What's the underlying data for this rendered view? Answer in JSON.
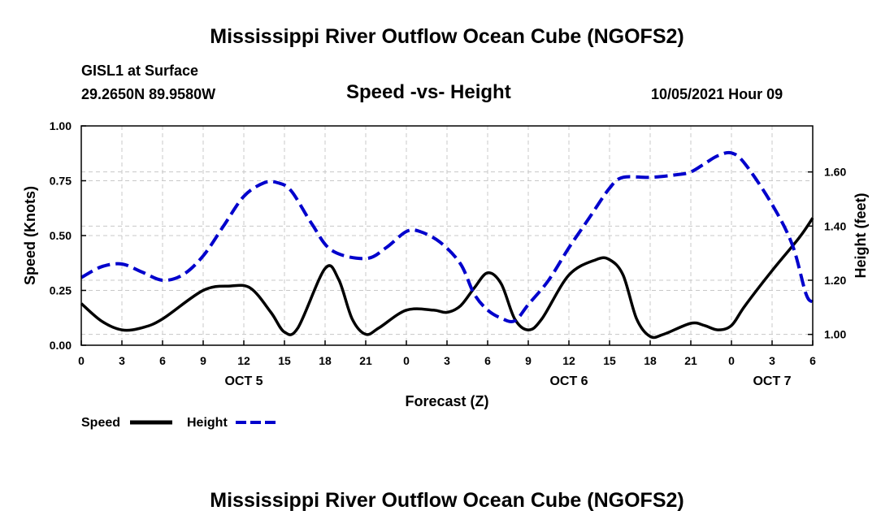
{
  "page": {
    "title_top": "Mississippi River Outflow Ocean Cube (NGOFS2)",
    "title_bottom": "Mississippi River Outflow Ocean Cube (NGOFS2)",
    "station_line": "GISL1 at Surface",
    "coords_line": "29.2650N  89.9580W",
    "chart_title": "Speed -vs- Height",
    "date_line": "10/05/2021 Hour 09"
  },
  "chart_data": {
    "type": "line",
    "title": "Speed -vs- Height",
    "xlabel": "Forecast (Z)",
    "ylabel": "Speed (Knots)",
    "y2label": "Height (feet)",
    "x": [
      0,
      3,
      6,
      9,
      12,
      15,
      18,
      21,
      24,
      27,
      30,
      33,
      36,
      39,
      42,
      45,
      48,
      51,
      54
    ],
    "xlim": [
      0,
      54
    ],
    "x_tick_labels": [
      "0",
      "3",
      "6",
      "9",
      "12",
      "15",
      "18",
      "21",
      "0",
      "3",
      "6",
      "9",
      "12",
      "15",
      "18",
      "21",
      "0",
      "3",
      "6"
    ],
    "day_labels": [
      {
        "label": "OCT 5",
        "x": 12
      },
      {
        "label": "OCT 6",
        "x": 36
      },
      {
        "label": "OCT 7",
        "x": 51
      }
    ],
    "ylim": [
      0,
      1
    ],
    "y_ticks": [
      "0.00",
      "0.25",
      "0.50",
      "0.75",
      "1.00"
    ],
    "y2lim": [
      0.96,
      1.77
    ],
    "y2_ticks": [
      "1.00",
      "1.20",
      "1.40",
      "1.60"
    ],
    "grid": true,
    "legend_position": "bottom-left",
    "series": [
      {
        "name": "Speed",
        "axis": "left",
        "color": "#000000",
        "dash": "solid",
        "points": [
          [
            0,
            0.19
          ],
          [
            1.5,
            0.11
          ],
          [
            3,
            0.07
          ],
          [
            4.5,
            0.08
          ],
          [
            6,
            0.12
          ],
          [
            9,
            0.25
          ],
          [
            11,
            0.27
          ],
          [
            12.5,
            0.26
          ],
          [
            14,
            0.15
          ],
          [
            15,
            0.06
          ],
          [
            16,
            0.08
          ],
          [
            18,
            0.35
          ],
          [
            19,
            0.3
          ],
          [
            20,
            0.12
          ],
          [
            21,
            0.05
          ],
          [
            22,
            0.08
          ],
          [
            24,
            0.16
          ],
          [
            26,
            0.16
          ],
          [
            27,
            0.15
          ],
          [
            28,
            0.18
          ],
          [
            29,
            0.26
          ],
          [
            30,
            0.33
          ],
          [
            31,
            0.28
          ],
          [
            32,
            0.12
          ],
          [
            33,
            0.07
          ],
          [
            34,
            0.12
          ],
          [
            36,
            0.32
          ],
          [
            38,
            0.39
          ],
          [
            39,
            0.39
          ],
          [
            40,
            0.32
          ],
          [
            41,
            0.12
          ],
          [
            42,
            0.04
          ],
          [
            43,
            0.05
          ],
          [
            45,
            0.1
          ],
          [
            46,
            0.09
          ],
          [
            47,
            0.07
          ],
          [
            48,
            0.09
          ],
          [
            49,
            0.18
          ],
          [
            51,
            0.34
          ],
          [
            53,
            0.49
          ],
          [
            54,
            0.58
          ]
        ]
      },
      {
        "name": "Height",
        "axis": "right",
        "color": "#0000cc",
        "dash": "dashed",
        "points": [
          [
            0,
            1.21
          ],
          [
            1.5,
            1.25
          ],
          [
            3,
            1.26
          ],
          [
            4.5,
            1.23
          ],
          [
            6,
            1.2
          ],
          [
            7.5,
            1.22
          ],
          [
            9,
            1.29
          ],
          [
            10.5,
            1.4
          ],
          [
            12,
            1.51
          ],
          [
            13.5,
            1.56
          ],
          [
            14.5,
            1.56
          ],
          [
            15.5,
            1.53
          ],
          [
            17,
            1.41
          ],
          [
            18.5,
            1.31
          ],
          [
            21,
            1.28
          ],
          [
            22.5,
            1.32
          ],
          [
            24,
            1.38
          ],
          [
            25,
            1.38
          ],
          [
            26.5,
            1.34
          ],
          [
            28,
            1.26
          ],
          [
            29,
            1.15
          ],
          [
            30,
            1.09
          ],
          [
            31,
            1.06
          ],
          [
            32,
            1.05
          ],
          [
            33,
            1.11
          ],
          [
            34.5,
            1.2
          ],
          [
            36,
            1.32
          ],
          [
            37.5,
            1.43
          ],
          [
            39,
            1.54
          ],
          [
            40,
            1.58
          ],
          [
            42,
            1.58
          ],
          [
            44,
            1.59
          ],
          [
            45,
            1.6
          ],
          [
            46,
            1.63
          ],
          [
            47,
            1.66
          ],
          [
            48,
            1.67
          ],
          [
            49,
            1.63
          ],
          [
            51,
            1.48
          ],
          [
            52.5,
            1.33
          ],
          [
            53.5,
            1.15
          ],
          [
            54,
            1.12
          ]
        ]
      }
    ]
  }
}
